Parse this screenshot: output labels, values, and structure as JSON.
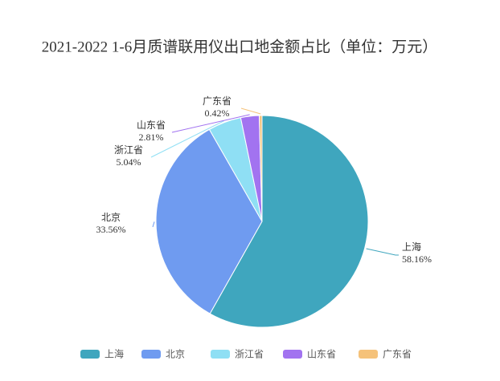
{
  "chart_data": {
    "type": "pie",
    "title": "2021-2022 1-6月质谱联用仪出口地金额占比（单位：万元）",
    "categories": [
      "上海",
      "北京",
      "浙江省",
      "山东省",
      "广东省"
    ],
    "values": [
      58.16,
      33.56,
      5.04,
      2.81,
      0.42
    ],
    "value_labels": [
      "58.16%",
      "33.56%",
      "5.04%",
      "2.81%",
      "0.42%"
    ],
    "colors": [
      "#3fa6be",
      "#6f9bf0",
      "#8fdff4",
      "#a273f0",
      "#f5c27a"
    ],
    "legend": "bottom"
  }
}
